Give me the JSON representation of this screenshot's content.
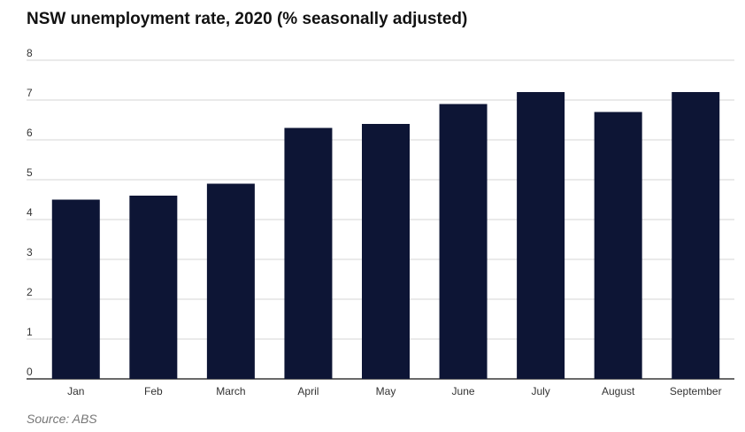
{
  "chart_data": {
    "type": "bar",
    "title": "NSW unemployment rate, 2020 (% seasonally adjusted)",
    "xlabel": "",
    "ylabel": "",
    "categories": [
      "Jan",
      "Feb",
      "March",
      "April",
      "May",
      "June",
      "July",
      "August",
      "September"
    ],
    "values": [
      4.5,
      4.6,
      4.9,
      6.3,
      6.4,
      6.9,
      7.2,
      6.7,
      7.2
    ],
    "ylim": [
      0,
      8
    ],
    "yticks": [
      0,
      1,
      2,
      3,
      4,
      5,
      6,
      7,
      8
    ],
    "grid": true,
    "bar_color": "#0d1535",
    "source": "Source: ABS"
  }
}
